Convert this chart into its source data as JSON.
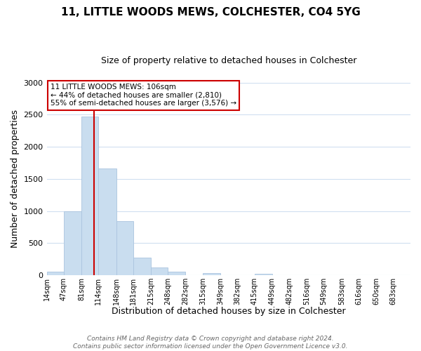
{
  "title": "11, LITTLE WOODS MEWS, COLCHESTER, CO4 5YG",
  "subtitle": "Size of property relative to detached houses in Colchester",
  "xlabel": "Distribution of detached houses by size in Colchester",
  "ylabel": "Number of detached properties",
  "bin_labels": [
    "14sqm",
    "47sqm",
    "81sqm",
    "114sqm",
    "148sqm",
    "181sqm",
    "215sqm",
    "248sqm",
    "282sqm",
    "315sqm",
    "349sqm",
    "382sqm",
    "415sqm",
    "449sqm",
    "482sqm",
    "516sqm",
    "549sqm",
    "583sqm",
    "616sqm",
    "650sqm",
    "683sqm"
  ],
  "bin_values": [
    55,
    1000,
    2470,
    1660,
    840,
    270,
    125,
    55,
    0,
    35,
    0,
    0,
    20,
    0,
    0,
    0,
    0,
    0,
    0,
    0,
    0
  ],
  "bar_color": "#c9ddef",
  "bar_edge_color": "#aac4df",
  "property_sqm": 106,
  "bin_edges": [
    14,
    47,
    81,
    114,
    148,
    181,
    215,
    248,
    282,
    315,
    349,
    382,
    415,
    449,
    482,
    516,
    549,
    583,
    616,
    650,
    683,
    716
  ],
  "annotation_title": "11 LITTLE WOODS MEWS: 106sqm",
  "annotation_line1": "← 44% of detached houses are smaller (2,810)",
  "annotation_line2": "55% of semi-detached houses are larger (3,576) →",
  "annotation_box_color": "#ffffff",
  "annotation_box_edge": "#cc0000",
  "vline_color": "#cc0000",
  "ylim": [
    0,
    3000
  ],
  "footer_line1": "Contains HM Land Registry data © Crown copyright and database right 2024.",
  "footer_line2": "Contains public sector information licensed under the Open Government Licence v3.0.",
  "background_color": "#ffffff",
  "grid_color": "#d0dff0",
  "title_fontsize": 11,
  "subtitle_fontsize": 9,
  "ylabel_fontsize": 9,
  "xlabel_fontsize": 9,
  "tick_fontsize": 7,
  "annotation_fontsize": 7.5,
  "footer_fontsize": 6.5
}
